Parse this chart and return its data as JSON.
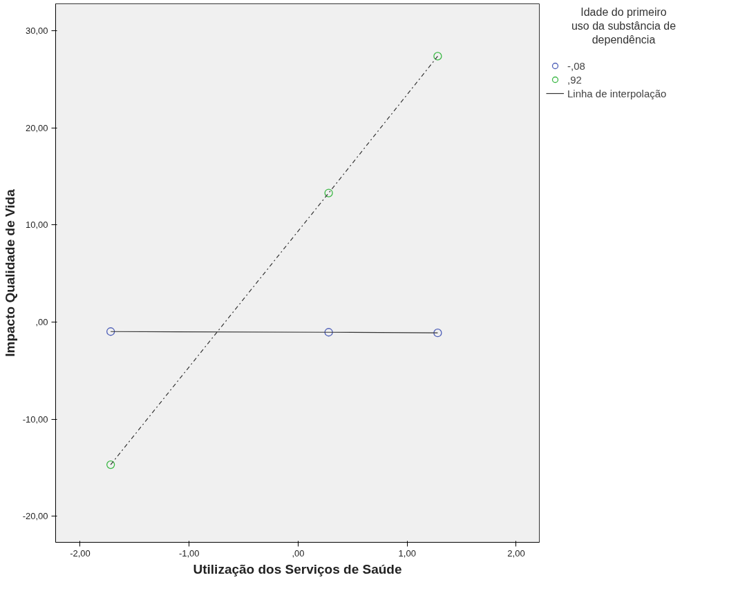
{
  "chart_data": {
    "type": "scatter",
    "xlabel": "Utilização dos Serviços de Saúde",
    "ylabel": "Impacto Qualidade de Vida",
    "legend_title": "Idade do primeiro uso da substância de dependência",
    "legend": "top right",
    "grid": false,
    "marker": "circle",
    "x": [
      -1.72,
      0.28,
      1.28
    ],
    "series": [
      {
        "name": "-,08",
        "color": "#4e5fb8",
        "values": [
          -0.98,
          -1.05,
          -1.12
        ]
      },
      {
        "name": ",92",
        "color": "#3cb846",
        "values": [
          -14.7,
          13.3,
          27.4
        ]
      },
      {
        "name": "Linha de interpolação",
        "type": "line",
        "marker": "none",
        "color": "#333333",
        "line_style": "solid",
        "x": [
          -1.72,
          0.28,
          1.28
        ],
        "values": [
          -0.98,
          -1.05,
          -1.12
        ]
      },
      {
        "type": "line",
        "marker": "none",
        "color": "#333333",
        "line_style": "dashed",
        "x": [
          -1.72,
          0.28,
          1.28
        ],
        "values": [
          -14.7,
          13.3,
          27.4
        ]
      }
    ],
    "xlim": [
      -2.225,
      2.2125
    ],
    "ylim": [
      -22.7,
      32.8
    ],
    "xticks": [
      {
        "value": -2,
        "label": "-2,00"
      },
      {
        "value": -1,
        "label": "-1,00"
      },
      {
        "value": 0,
        "label": ",00"
      },
      {
        "value": 1,
        "label": "1,00"
      },
      {
        "value": 2,
        "label": "2,00"
      }
    ],
    "yticks": [
      {
        "value": -20,
        "label": "-20,00"
      },
      {
        "value": -10,
        "label": "-10,00"
      },
      {
        "value": 0,
        "label": ",00"
      },
      {
        "value": 10,
        "label": "10,00"
      },
      {
        "value": 20,
        "label": "20,00"
      },
      {
        "value": 30,
        "label": "30,00"
      }
    ]
  }
}
